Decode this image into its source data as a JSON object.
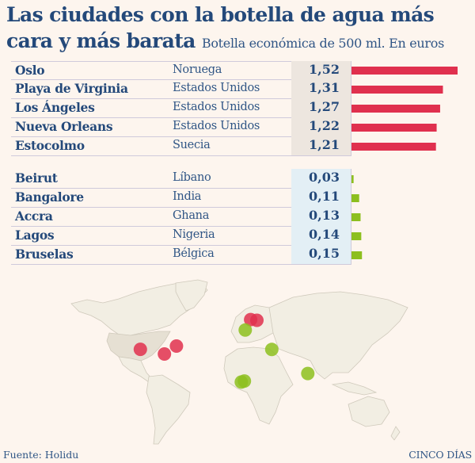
{
  "title": "Las ciudades con la botella de agua más cara y más barata",
  "subtitle": "Botella económica de 500 ml. En euros",
  "source": "Fuente: Holidu",
  "brand": "CINCO DÍAS",
  "colors": {
    "expensive": "#e0304e",
    "cheap": "#8dbf1f",
    "text": "#24497a",
    "land": "#f2eee3",
    "land_usa": "#e6e0d3",
    "background": "#fdf5ee"
  },
  "chart_data": {
    "type": "bar",
    "title": "Las ciudades con la botella de agua más cara y más barata",
    "subtitle": "Botella económica de 500 ml. En euros",
    "unit": "euros",
    "groups": [
      {
        "name": "más cara",
        "color": "#e0304e",
        "rows": [
          {
            "city": "Oslo",
            "country": "Noruega",
            "value": 1.52,
            "label": "1,52"
          },
          {
            "city": "Playa de Virginia",
            "country": "Estados Unidos",
            "value": 1.31,
            "label": "1,31"
          },
          {
            "city": "Los Ángeles",
            "country": "Estados Unidos",
            "value": 1.27,
            "label": "1,27"
          },
          {
            "city": "Nueva Orleans",
            "country": "Estados Unidos",
            "value": 1.22,
            "label": "1,22"
          },
          {
            "city": "Estocolmo",
            "country": "Suecia",
            "value": 1.21,
            "label": "1,21"
          }
        ]
      },
      {
        "name": "más barata",
        "color": "#8dbf1f",
        "rows": [
          {
            "city": "Beirut",
            "country": "Líbano",
            "value": 0.03,
            "label": "0,03"
          },
          {
            "city": "Bangalore",
            "country": "India",
            "value": 0.11,
            "label": "0,11"
          },
          {
            "city": "Accra",
            "country": "Ghana",
            "value": 0.13,
            "label": "0,13"
          },
          {
            "city": "Lagos",
            "country": "Nigeria",
            "value": 0.14,
            "label": "0,14"
          },
          {
            "city": "Bruselas",
            "country": "Bélgica",
            "value": 0.15,
            "label": "0,15"
          }
        ]
      }
    ],
    "map_markers": [
      {
        "city": "Oslo",
        "group": "más cara",
        "lon": 10.7,
        "lat": 59.9
      },
      {
        "city": "Estocolmo",
        "group": "más cara",
        "lon": 18.1,
        "lat": 59.3
      },
      {
        "city": "Playa de Virginia",
        "group": "más cara",
        "lon": -76.0,
        "lat": 36.9
      },
      {
        "city": "Los Ángeles",
        "group": "más cara",
        "lon": -118.2,
        "lat": 34.1
      },
      {
        "city": "Nueva Orleans",
        "group": "más cara",
        "lon": -90.1,
        "lat": 30.0
      },
      {
        "city": "Bruselas",
        "group": "más barata",
        "lon": 4.4,
        "lat": 50.8
      },
      {
        "city": "Beirut",
        "group": "más barata",
        "lon": 35.5,
        "lat": 33.9
      },
      {
        "city": "Bangalore",
        "group": "más barata",
        "lon": 77.6,
        "lat": 13.0
      },
      {
        "city": "Accra",
        "group": "más barata",
        "lon": -0.2,
        "lat": 5.6
      },
      {
        "city": "Lagos",
        "group": "más barata",
        "lon": 3.4,
        "lat": 6.5
      }
    ]
  }
}
